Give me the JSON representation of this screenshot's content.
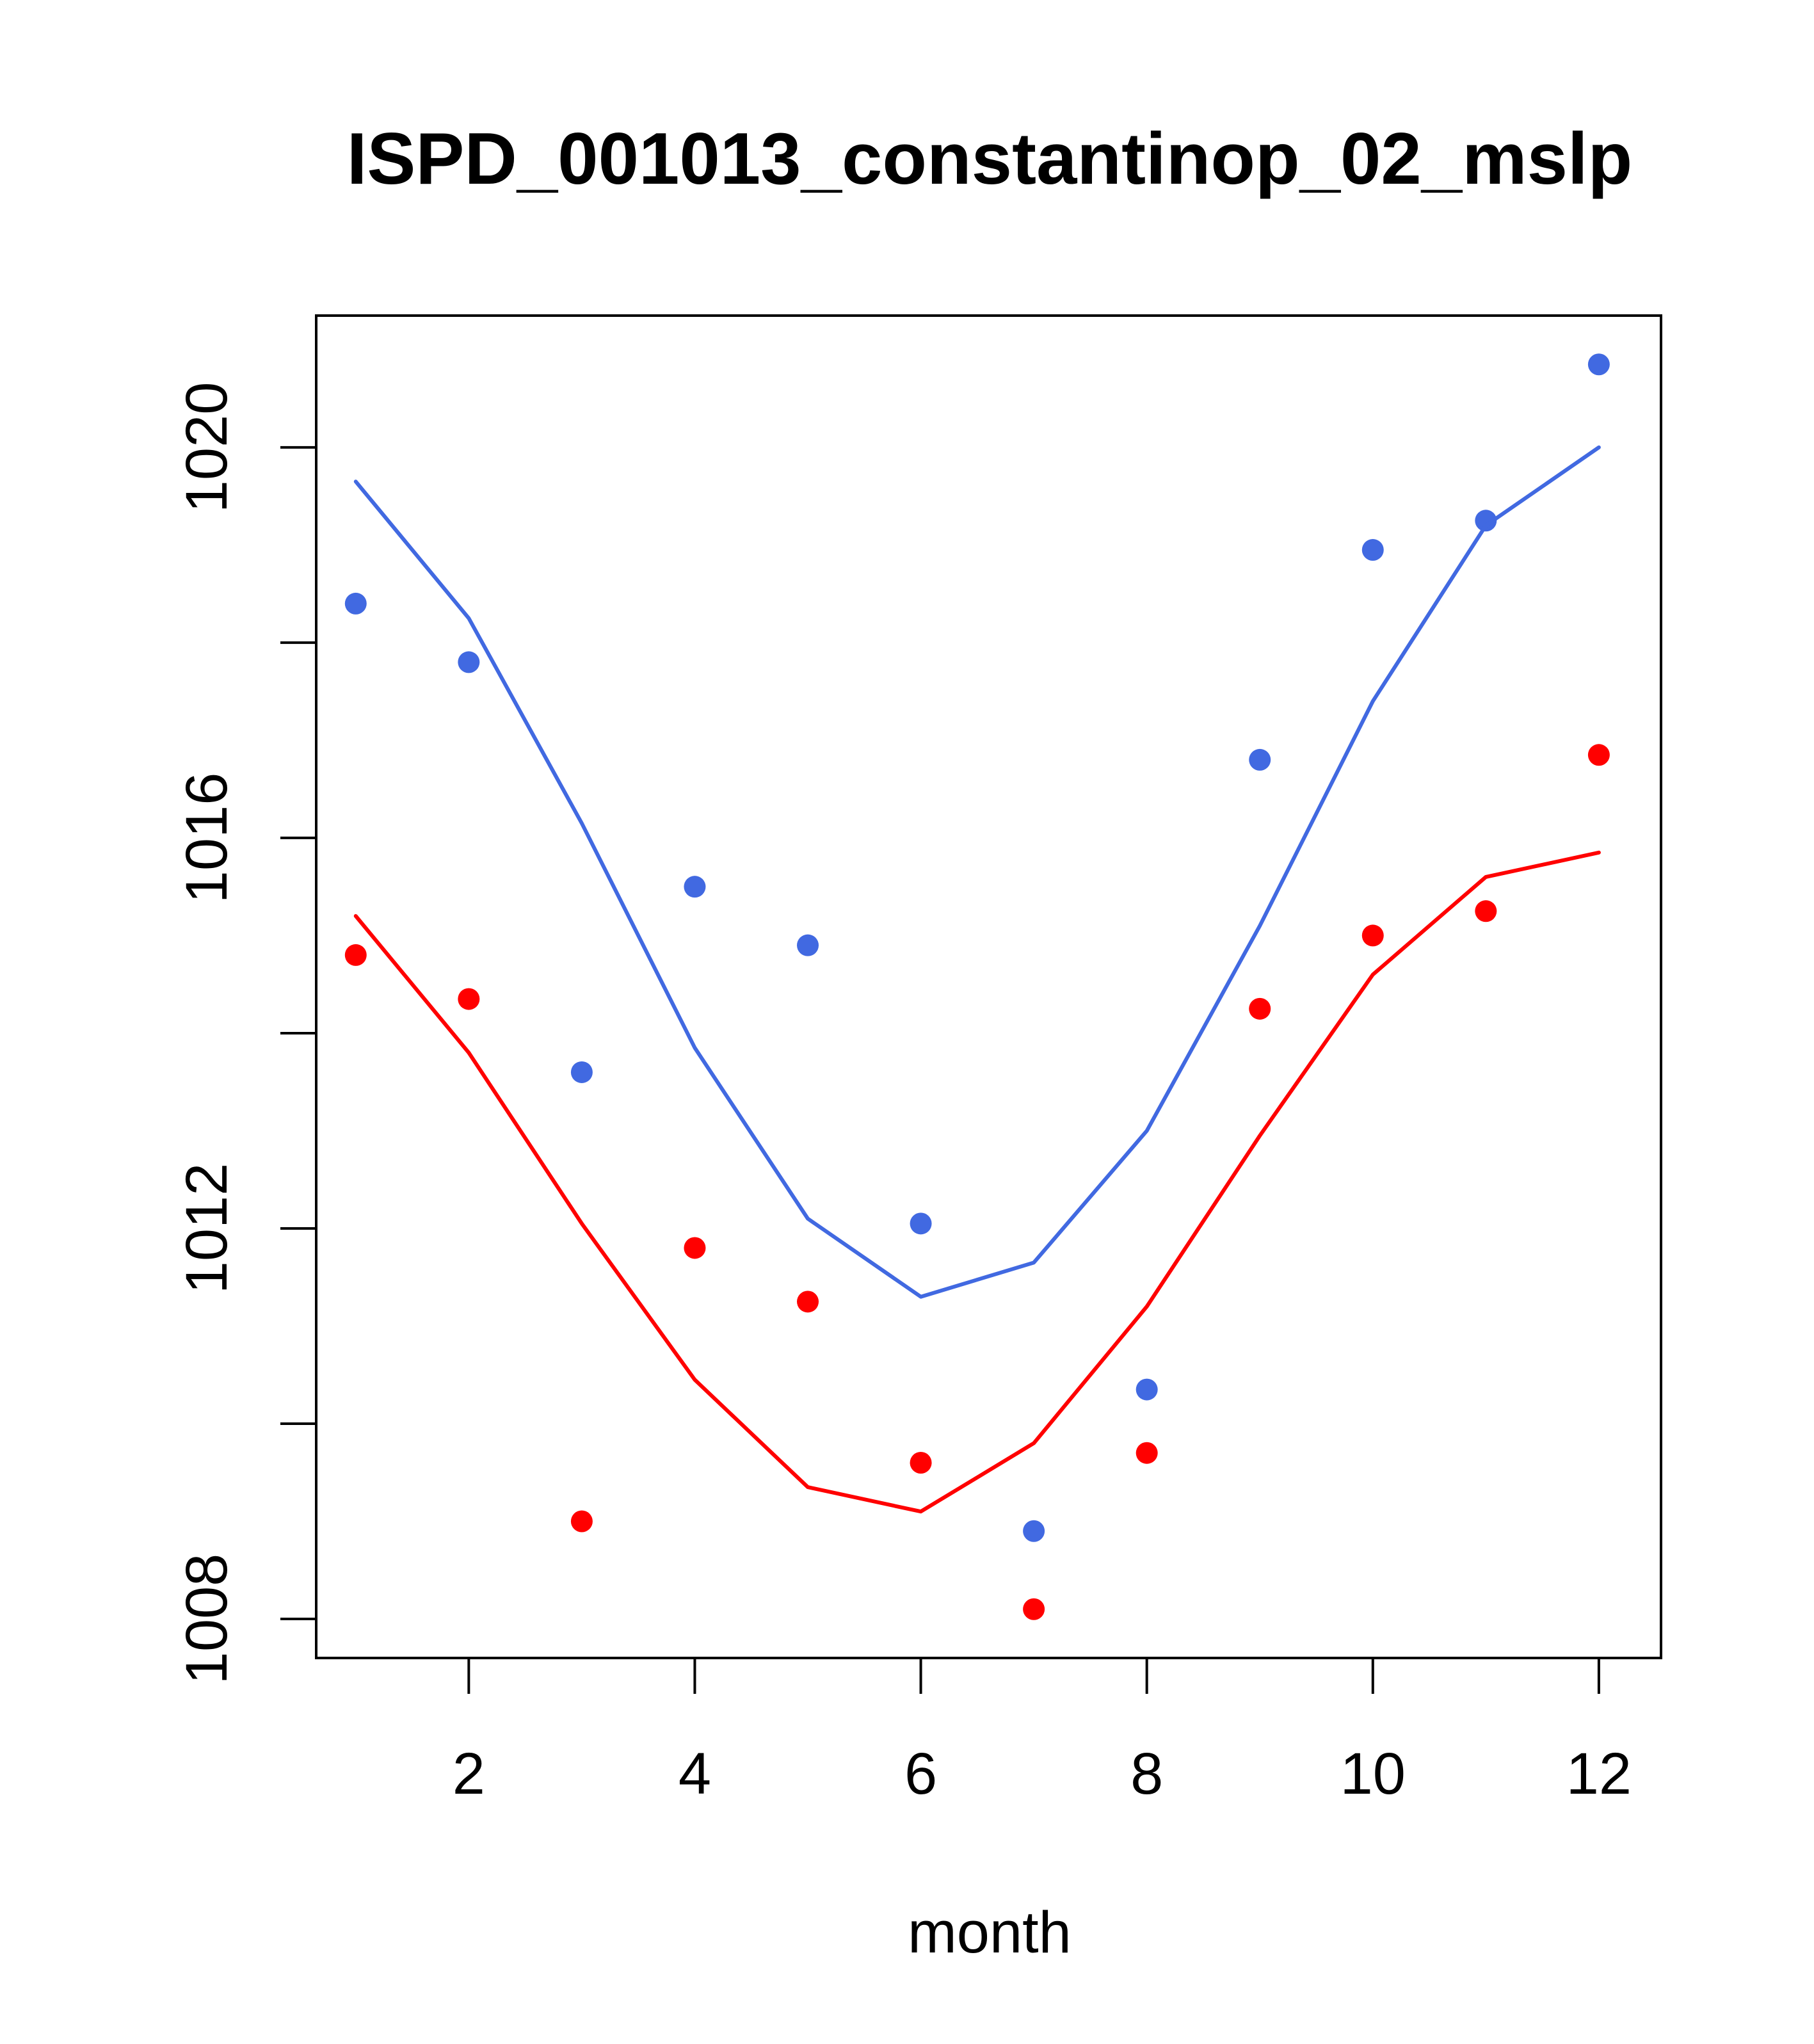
{
  "chart_data": {
    "type": "scatter",
    "title": "ISPD_001013_constantinop_02_mslp",
    "xlabel": "month",
    "ylabel": "",
    "xlim": [
      0.65,
      12.55
    ],
    "ylim": [
      1007.6,
      1021.35
    ],
    "x_ticks": [
      2,
      4,
      6,
      8,
      10,
      12
    ],
    "y_ticks": [
      1008,
      1010,
      1012,
      1014,
      1016,
      1018,
      1020
    ],
    "y_tick_labels": [
      "1008",
      "",
      "1012",
      "",
      "1016",
      "",
      "1020"
    ],
    "x_tick_labels": [
      "2",
      "4",
      "6",
      "8",
      "10",
      "12"
    ],
    "series": [
      {
        "name": "blue points",
        "kind": "points",
        "color": "#4169e1",
        "x": [
          1,
          2,
          3,
          4,
          5,
          6,
          7,
          8,
          9,
          10,
          11,
          12
        ],
        "values": [
          1018.4,
          1017.8,
          1013.6,
          1015.5,
          1014.9,
          1012.05,
          1008.9,
          1010.35,
          1016.8,
          1018.95,
          1019.25,
          1020.85
        ]
      },
      {
        "name": "blue line",
        "kind": "line",
        "color": "#4169e1",
        "x": [
          1,
          2,
          3,
          4,
          5,
          6,
          7,
          8,
          9,
          10,
          11,
          12
        ],
        "values": [
          1019.65,
          1018.25,
          1016.15,
          1013.85,
          1012.1,
          1011.3,
          1011.65,
          1013.0,
          1015.1,
          1017.4,
          1019.2,
          1020.0
        ]
      },
      {
        "name": "red points",
        "kind": "points",
        "color": "#ff0000",
        "x": [
          1,
          2,
          3,
          4,
          5,
          6,
          7,
          8,
          9,
          10,
          11,
          12
        ],
        "values": [
          1014.8,
          1014.35,
          1009.0,
          1011.8,
          1011.25,
          1009.6,
          1008.1,
          1009.7,
          1014.25,
          1015.0,
          1015.25,
          1016.85
        ]
      },
      {
        "name": "red line",
        "kind": "line",
        "color": "#ff0000",
        "x": [
          1,
          2,
          3,
          4,
          5,
          6,
          7,
          8,
          9,
          10,
          11,
          12
        ],
        "values": [
          1015.2,
          1013.8,
          1012.05,
          1010.45,
          1009.35,
          1009.1,
          1009.8,
          1011.2,
          1012.95,
          1014.6,
          1015.6,
          1015.85
        ]
      }
    ]
  }
}
